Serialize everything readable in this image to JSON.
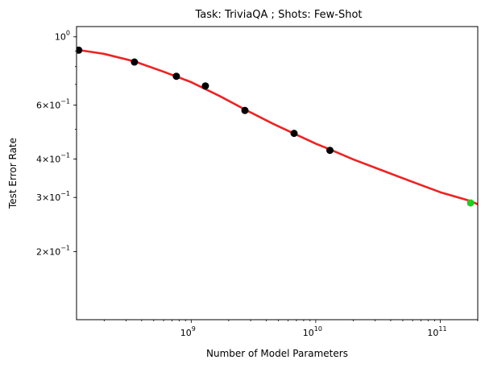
{
  "chart_data": {
    "type": "scatter",
    "title": "Task: TriviaQA ; Shots: Few-Shot",
    "xlabel": "Number of Model Parameters",
    "ylabel": "Test Error Rate",
    "xscale": "log",
    "yscale": "log",
    "xlim": [
      120000000.0,
      200000000000.0
    ],
    "ylim": [
      0.12,
      1.08
    ],
    "x_ticks": [
      {
        "value": 1000000000.0,
        "base": "10",
        "exp": "9"
      },
      {
        "value": 10000000000.0,
        "base": "10",
        "exp": "10"
      },
      {
        "value": 100000000000.0,
        "base": "10",
        "exp": "11"
      }
    ],
    "y_ticks": [
      {
        "value": 1.0,
        "base": "10",
        "exp": "0"
      },
      {
        "value": 0.6,
        "base": "6×10",
        "exp": "−1"
      },
      {
        "value": 0.4,
        "base": "4×10",
        "exp": "−1"
      },
      {
        "value": 0.3,
        "base": "3×10",
        "exp": "−1"
      },
      {
        "value": 0.2,
        "base": "2×10",
        "exp": "−1"
      }
    ],
    "series": [
      {
        "kind": "points",
        "color": "#000000",
        "x": [
          125000000.0,
          350000000.0,
          760000000.0,
          1300000000.0,
          2700000000.0,
          6700000000.0,
          13000000000.0
        ],
        "y": [
          0.905,
          0.828,
          0.744,
          0.692,
          0.576,
          0.485,
          0.427
        ]
      },
      {
        "kind": "points",
        "color": "#22cc22",
        "x": [
          175000000000.0
        ],
        "y": [
          0.288
        ]
      },
      {
        "kind": "line",
        "color": "#ee2222",
        "x": [
          120000000.0,
          200000000.0,
          350000000.0,
          600000000.0,
          1000000000.0,
          1700000000.0,
          2700000000.0,
          4500000000.0,
          6700000000.0,
          10000000000.0,
          13000000000.0,
          20000000000.0,
          35000000000.0,
          60000000000.0,
          100000000000.0,
          175000000000.0,
          200000000000.0
        ],
        "y": [
          0.908,
          0.88,
          0.832,
          0.77,
          0.712,
          0.641,
          0.58,
          0.522,
          0.484,
          0.449,
          0.43,
          0.399,
          0.366,
          0.337,
          0.312,
          0.292,
          0.285
        ]
      }
    ]
  }
}
